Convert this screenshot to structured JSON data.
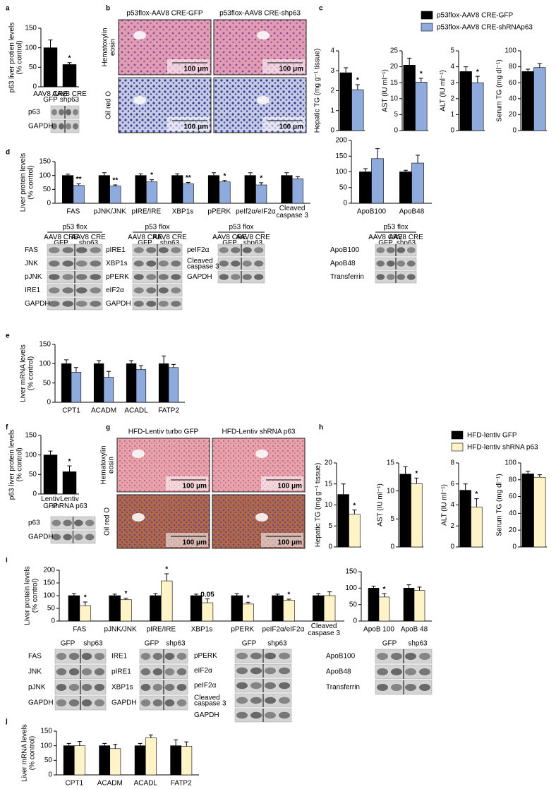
{
  "panel_letters": [
    "a",
    "b",
    "c",
    "d",
    "e",
    "f",
    "g",
    "h",
    "i",
    "j"
  ],
  "chart_data": [
    {
      "type": "bar",
      "ylabel": "p63 liver protien levels (% control)",
      "categories": [
        "AAV8 CRE GFP",
        "AAV8 CRE shp63"
      ],
      "ylim": [
        0,
        150
      ],
      "yticks": [
        0,
        50,
        100,
        150
      ],
      "series": [
        {
          "color": "#000000",
          "values": [
            100,
            57
          ],
          "errors": [
            20,
            5
          ],
          "sig": [
            null,
            "*"
          ]
        }
      ]
    },
    {
      "type": "bar",
      "ylabel": "Hepatic TG (mg g⁻¹ tissue)",
      "categories": [
        null
      ],
      "ylim": [
        0,
        4
      ],
      "yticks": [
        0,
        1,
        2,
        3,
        4
      ],
      "legend": true,
      "series": [
        {
          "name": "p53flox-AAV8 CRE-GFP",
          "color": "#000000",
          "values": [
            2.9
          ],
          "errors": [
            0.25
          ],
          "sig": [
            null
          ]
        },
        {
          "name": "p53flox-AAV8 CRE-shRNAp63",
          "color": "#8faadc",
          "values": [
            2.05
          ],
          "errors": [
            0.25
          ],
          "sig": [
            "*"
          ]
        }
      ]
    },
    {
      "type": "bar",
      "ylabel": "AST (IU ml⁻¹)",
      "categories": [
        null
      ],
      "ylim": [
        0,
        25
      ],
      "yticks": [
        0,
        5,
        10,
        15,
        20,
        25
      ],
      "series": [
        {
          "color": "#000000",
          "values": [
            20.5
          ],
          "errors": [
            2.2
          ],
          "sig": [
            null
          ]
        },
        {
          "color": "#8faadc",
          "values": [
            15.2
          ],
          "errors": [
            1.2
          ],
          "sig": [
            "*"
          ]
        }
      ]
    },
    {
      "type": "bar",
      "ylabel": "ALT (IU ml⁻¹)",
      "categories": [
        null
      ],
      "ylim": [
        0,
        5
      ],
      "yticks": [
        0,
        1,
        2,
        3,
        4,
        5
      ],
      "series": [
        {
          "color": "#000000",
          "values": [
            3.7
          ],
          "errors": [
            0.3
          ],
          "sig": [
            null
          ]
        },
        {
          "color": "#8faadc",
          "values": [
            3.0
          ],
          "errors": [
            0.4
          ],
          "sig": [
            "*"
          ]
        }
      ]
    },
    {
      "type": "bar",
      "ylabel": "Serum TG (mg dl⁻¹)",
      "categories": [
        null
      ],
      "ylim": [
        0,
        100
      ],
      "yticks": [
        0,
        20,
        40,
        60,
        80,
        100
      ],
      "series": [
        {
          "color": "#000000",
          "values": [
            74
          ],
          "errors": [
            3
          ],
          "sig": [
            null
          ]
        },
        {
          "color": "#8faadc",
          "values": [
            79
          ],
          "errors": [
            5
          ],
          "sig": [
            null
          ]
        }
      ]
    },
    {
      "type": "bar",
      "ylabel": "Liver protein levels (% control)",
      "categories": [
        "FAS",
        "pJNK/JNK",
        "pIRE/IRE",
        "XBP1s",
        "pPERK",
        "peIf2α/eIF2α",
        "Cleaved caspase 3"
      ],
      "ylim": [
        0,
        150
      ],
      "yticks": [
        0,
        50,
        100,
        150
      ],
      "series": [
        {
          "color": "#000000",
          "values": [
            100,
            100,
            100,
            100,
            100,
            100,
            100
          ],
          "errors": [
            5,
            10,
            6,
            6,
            10,
            10,
            10
          ],
          "sig": [
            null,
            null,
            null,
            null,
            null,
            null,
            null
          ]
        },
        {
          "color": "#8faadc",
          "values": [
            64,
            62,
            77,
            70,
            77,
            66,
            88
          ],
          "errors": [
            6,
            4,
            8,
            5,
            5,
            8,
            8
          ],
          "sig": [
            "**",
            "**",
            "*",
            "**",
            "*",
            "*",
            null
          ]
        }
      ]
    },
    {
      "type": "bar",
      "ylabel": null,
      "categories": [
        "ApoB100",
        "ApoB48"
      ],
      "ylim": [
        0,
        200
      ],
      "yticks": [
        0,
        50,
        100,
        150,
        200
      ],
      "series": [
        {
          "color": "#000000",
          "values": [
            100,
            100
          ],
          "errors": [
            10,
            5
          ],
          "sig": [
            null,
            null
          ]
        },
        {
          "color": "#8faadc",
          "values": [
            142,
            128
          ],
          "errors": [
            32,
            25
          ],
          "sig": [
            null,
            null
          ]
        }
      ]
    },
    {
      "type": "bar",
      "ylabel": "Liver mRNA levels (% control)",
      "categories": [
        "CPT1",
        "ACADM",
        "ACADL",
        "FATP2"
      ],
      "ylim": [
        0,
        150
      ],
      "yticks": [
        0,
        50,
        100,
        150
      ],
      "series": [
        {
          "color": "#000000",
          "values": [
            100,
            100,
            100,
            100
          ],
          "errors": [
            10,
            8,
            8,
            20
          ],
          "sig": [
            null,
            null,
            null,
            null
          ]
        },
        {
          "color": "#8faadc",
          "values": [
            78,
            65,
            85,
            90
          ],
          "errors": [
            12,
            15,
            10,
            8
          ],
          "sig": [
            null,
            null,
            null,
            null
          ]
        }
      ]
    },
    {
      "type": "bar",
      "ylabel": "p63 liver protein levels (% control)",
      "categories": [
        "Lentiv GFP",
        "Lentiv shRNA p63"
      ],
      "ylim": [
        0,
        150
      ],
      "yticks": [
        0,
        50,
        100,
        150
      ],
      "series": [
        {
          "color": "#000000",
          "values": [
            100,
            57
          ],
          "errors": [
            10,
            15
          ],
          "sig": [
            null,
            "*"
          ]
        }
      ]
    },
    {
      "type": "bar",
      "ylabel": "Hepatic TG (mg g⁻¹ tissue)",
      "categories": [
        null
      ],
      "ylim": [
        0,
        20
      ],
      "yticks": [
        0,
        5,
        10,
        15,
        20
      ],
      "legend": true,
      "series": [
        {
          "name": "HFD-lentiv GFP",
          "color": "#000000",
          "values": [
            12.5
          ],
          "errors": [
            2.5
          ],
          "sig": [
            null
          ]
        },
        {
          "name": "HFD-lentiv shRNA p63",
          "color": "#fff4c8",
          "values": [
            7.8
          ],
          "errors": [
            1
          ],
          "sig": [
            "*"
          ]
        }
      ]
    },
    {
      "type": "bar",
      "ylabel": "AST (IU ml⁻¹)",
      "categories": [
        null
      ],
      "ylim": [
        0,
        15
      ],
      "yticks": [
        0,
        5,
        10,
        15
      ],
      "series": [
        {
          "color": "#000000",
          "values": [
            13
          ],
          "errors": [
            1.3
          ],
          "sig": [
            null
          ]
        },
        {
          "color": "#fff4c8",
          "values": [
            11.3
          ],
          "errors": [
            1
          ],
          "sig": [
            "*"
          ]
        }
      ]
    },
    {
      "type": "bar",
      "ylabel": "ALT (IU ml⁻¹)",
      "categories": [
        null
      ],
      "ylim": [
        0,
        8
      ],
      "yticks": [
        0,
        2,
        4,
        6,
        8
      ],
      "series": [
        {
          "color": "#000000",
          "values": [
            5.4
          ],
          "errors": [
            0.6
          ],
          "sig": [
            null
          ]
        },
        {
          "color": "#fff4c8",
          "values": [
            3.8
          ],
          "errors": [
            0.8
          ],
          "sig": [
            "*"
          ]
        }
      ]
    },
    {
      "type": "bar",
      "ylabel": "Serum TG (mg dl⁻¹)",
      "categories": [
        null
      ],
      "ylim": [
        0,
        100
      ],
      "yticks": [
        0,
        20,
        40,
        60,
        80,
        100
      ],
      "series": [
        {
          "color": "#000000",
          "values": [
            87
          ],
          "errors": [
            3
          ],
          "sig": [
            null
          ]
        },
        {
          "color": "#fff4c8",
          "values": [
            83
          ],
          "errors": [
            3
          ],
          "sig": [
            null
          ]
        }
      ]
    },
    {
      "type": "bar",
      "ylabel": "Liver protein levels (% control)",
      "categories": [
        "FAS",
        "pJNK/JNK",
        "pIRE/IRE",
        "XBP1s",
        "pPERK",
        "peIF2α/eIF2α",
        "Cleaved caspase 3"
      ],
      "ylim": [
        0,
        200
      ],
      "yticks": [
        0,
        50,
        100,
        150,
        200
      ],
      "series": [
        {
          "color": "#000000",
          "values": [
            100,
            100,
            100,
            100,
            100,
            100,
            100
          ],
          "errors": [
            8,
            6,
            8,
            6,
            8,
            6,
            8
          ],
          "sig": [
            null,
            null,
            null,
            null,
            null,
            null,
            null
          ]
        },
        {
          "color": "#fff4c8",
          "values": [
            60,
            84,
            158,
            72,
            67,
            82,
            100
          ],
          "errors": [
            15,
            6,
            28,
            15,
            7,
            4,
            15
          ],
          "sig": [
            "*",
            "*",
            "*",
            "0.05",
            "*",
            "*",
            null
          ]
        }
      ]
    },
    {
      "type": "bar",
      "ylabel": null,
      "categories": [
        "ApoB 100",
        "ApoB 48"
      ],
      "ylim": [
        0,
        150
      ],
      "yticks": [
        0,
        50,
        100,
        150
      ],
      "series": [
        {
          "color": "#000000",
          "values": [
            100,
            100
          ],
          "errors": [
            6,
            10
          ],
          "sig": [
            null,
            null
          ]
        },
        {
          "color": "#fff4c8",
          "values": [
            73,
            93
          ],
          "errors": [
            10,
            10
          ],
          "sig": [
            "*",
            null
          ]
        }
      ]
    },
    {
      "type": "bar",
      "ylabel": "Liver mRNA levels (% control)",
      "categories": [
        "CPT1",
        "ACADM",
        "ACADL",
        "FATP2"
      ],
      "ylim": [
        0,
        150
      ],
      "yticks": [
        0,
        50,
        100,
        150
      ],
      "series": [
        {
          "color": "#000000",
          "values": [
            100,
            100,
            100,
            100
          ],
          "errors": [
            8,
            8,
            8,
            20
          ],
          "sig": [
            null,
            null,
            null,
            null
          ]
        },
        {
          "color": "#fff4c8",
          "values": [
            100,
            90,
            127,
            98
          ],
          "errors": [
            15,
            15,
            10,
            15
          ],
          "sig": [
            null,
            null,
            null,
            null
          ]
        }
      ]
    }
  ],
  "micrographs": [
    {
      "columns": [
        "p53flox-AAV8 CRE-GFP",
        "p53flox-AAV8 CRE-shp63"
      ],
      "rows": [
        "Hematoxylin eosin",
        "Oil red O"
      ],
      "scale": "100 μm"
    },
    {
      "columns": [
        "HFD-Lentiv turbo GFP",
        "HFD-Lentiv shRNA p63"
      ],
      "rows": [
        "Hematoxylin eosin",
        "Oil red O"
      ],
      "scale": "100 μm"
    }
  ],
  "blots": [
    {
      "rows": [
        "p63",
        "GAPDH"
      ]
    },
    {
      "header": "p53 flox",
      "columns": [
        "AAV8 CRE GFP",
        "AAV8 CRE shp63"
      ],
      "rows": [
        "FAS",
        "JNK",
        "pJNK",
        "IRE1",
        "GAPDH"
      ]
    },
    {
      "header": "p53 flox",
      "columns": [
        "AAV8 CRE GFP",
        "AAV8 CRE shp63"
      ],
      "rows": [
        "pIRE1",
        "XBP1s",
        "pPERK",
        "eIF2α",
        "GAPDH"
      ]
    },
    {
      "header": "p53 flox",
      "columns": [
        "AAV8 CRE GFP",
        "AAV8 CRE shp63"
      ],
      "rows": [
        "peIF2α",
        "Cleaved caspase 3",
        "GAPDH"
      ]
    },
    {
      "header": "p53 flox",
      "columns": [
        "AAV8 CRE GFP",
        "AAV8 CRE shp63"
      ],
      "rows": [
        "ApoB100",
        "ApoB48",
        "Transferrin"
      ]
    },
    {
      "rows": [
        "p63",
        "GAPDH"
      ]
    },
    {
      "columns": [
        "GFP",
        "shp63"
      ],
      "rows": [
        "FAS",
        "JNK",
        "pJNK",
        "GAPDH"
      ]
    },
    {
      "columns": [
        "GFP",
        "shp63"
      ],
      "rows": [
        "IRE1",
        "pIRE1",
        "XBP1s",
        "GAPDH"
      ]
    },
    {
      "columns": [
        "GFP",
        "shp63"
      ],
      "rows": [
        "pPERK",
        "eIF2α",
        "peIF2α",
        "Cleaved caspase 3",
        "GAPDH"
      ]
    },
    {
      "columns": [
        "GFP",
        "shp63"
      ],
      "rows": [
        "ApoB100",
        "ApoB48",
        "Transferrin"
      ]
    }
  ]
}
